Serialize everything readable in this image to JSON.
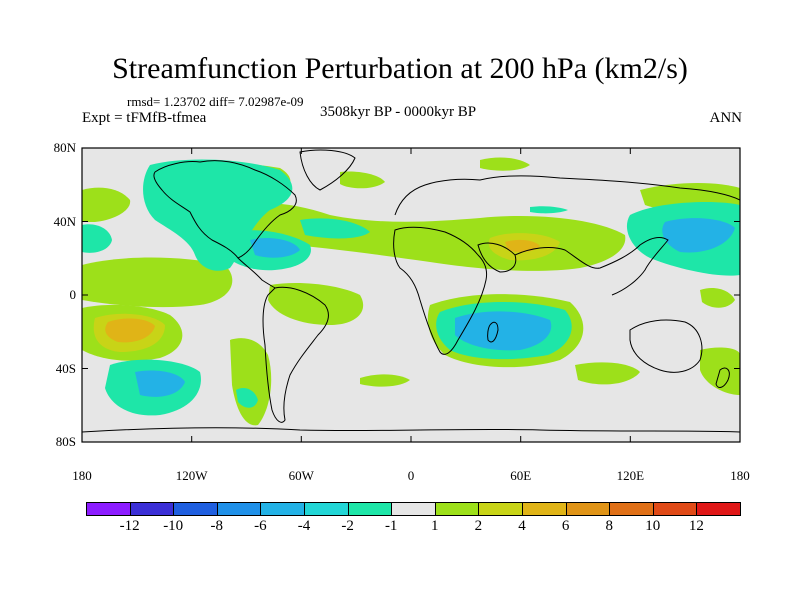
{
  "title": "Streamfunction Perturbation at 200 hPa (km2/s)",
  "stats": "rmsd= 1.23702  diff= 7.02987e-09",
  "experiment": "Expt = tFMfB-tfmea",
  "period": "3508kyr BP - 0000kyr BP",
  "season": "ANN",
  "map": {
    "background_color": "#e6e6e6",
    "lat_labels": [
      "80N",
      "40N",
      "0",
      "40S",
      "80S"
    ],
    "lon_labels": [
      "180",
      "120W",
      "60W",
      "0",
      "60E",
      "120E",
      "180"
    ]
  },
  "colorbar": {
    "colors": [
      "#8c1cff",
      "#3b2fd6",
      "#1f5fe0",
      "#1f90e8",
      "#23b2e6",
      "#22d6d6",
      "#1ee6a8",
      "#e6e6e6",
      "#9de01a",
      "#c8d417",
      "#e0b417",
      "#e09417",
      "#e07017",
      "#e04a17",
      "#e01717"
    ],
    "labels": [
      "-12",
      "-10",
      "-8",
      "-6",
      "-4",
      "-2",
      "-1",
      "1",
      "2",
      "4",
      "6",
      "8",
      "10",
      "12"
    ]
  },
  "anomalies": [
    {
      "region": "N Pacific",
      "level": 2
    },
    {
      "region": "Central Pacific subtropics",
      "level": 2
    },
    {
      "region": "North Atlantic / Eurasia belt",
      "level": 2
    },
    {
      "region": "Middle East",
      "level": 4
    },
    {
      "region": "Caribbean",
      "level": -4
    },
    {
      "region": "NW Pacific",
      "level": -4
    },
    {
      "region": "Indian Ocean / Madagascar",
      "level": -4
    },
    {
      "region": "SE Pacific",
      "level": 6
    },
    {
      "region": "S Pacific",
      "level": -4
    },
    {
      "region": "Southern South America",
      "level": 2
    }
  ]
}
